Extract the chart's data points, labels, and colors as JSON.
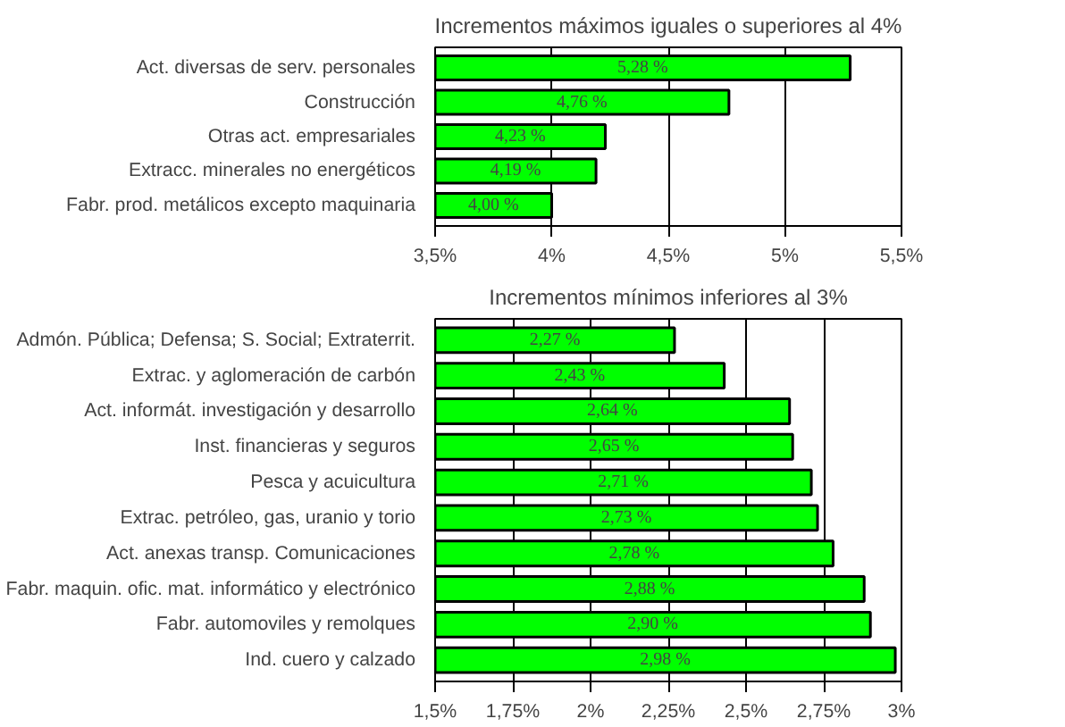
{
  "chart_data": [
    {
      "type": "bar",
      "orientation": "horizontal",
      "title": "Incrementos máximos iguales o superiores al 4%",
      "categories": [
        "Act. diversas de serv. personales",
        "Construcción",
        "Otras act. empresariales",
        "Extracc. minerales no energéticos",
        "Fabr. prod. metálicos excepto maquinaria"
      ],
      "values": [
        5.28,
        4.76,
        4.23,
        4.19,
        4.0
      ],
      "value_labels": [
        "5,28 %",
        "4,76 %",
        "4,23 %",
        "4,19 %",
        "4,00 %"
      ],
      "color": "#00ff00",
      "xlim": [
        3.5,
        5.5
      ],
      "xticks": [
        {
          "value": 3.5,
          "label": "3,5%"
        },
        {
          "value": 4,
          "label": "4%"
        },
        {
          "value": 4.5,
          "label": "4,5%"
        },
        {
          "value": 5,
          "label": "5%"
        },
        {
          "value": 5.5,
          "label": "5,5%"
        }
      ],
      "grid": "x"
    },
    {
      "type": "bar",
      "orientation": "horizontal",
      "title": "Incrementos mínimos inferiores al 3%",
      "categories": [
        "Admón. Pública; Defensa; S. Social; Extraterrit.",
        "Extrac. y aglomeración de carbón",
        "Act. informát. investigación y desarrollo",
        "Inst. financieras y seguros",
        "Pesca y acuicultura",
        "Extrac. petróleo, gas, uranio y torio",
        "Act. anexas transp. Comunicaciones",
        "Fabr. maquin. ofic. mat. informático y electrónico",
        "Fabr. automoviles y remolques",
        "Ind. cuero y calzado"
      ],
      "values": [
        2.27,
        2.43,
        2.64,
        2.65,
        2.71,
        2.73,
        2.78,
        2.88,
        2.9,
        2.98
      ],
      "value_labels": [
        "2,27 %",
        "2,43 %",
        "2,64 %",
        "2,65 %",
        "2,71 %",
        "2,73 %",
        "2,78 %",
        "2,88 %",
        "2,90 %",
        "2,98 %"
      ],
      "color": "#00ff00",
      "xlim": [
        1.5,
        3
      ],
      "xticks": [
        {
          "value": 1.5,
          "label": "1,5%"
        },
        {
          "value": 1.75,
          "label": "1,75%"
        },
        {
          "value": 2,
          "label": "2%"
        },
        {
          "value": 2.25,
          "label": "2,25%"
        },
        {
          "value": 2.5,
          "label": "2,5%"
        },
        {
          "value": 2.75,
          "label": "2,75%"
        },
        {
          "value": 3,
          "label": "3%"
        }
      ],
      "grid": "x"
    }
  ]
}
